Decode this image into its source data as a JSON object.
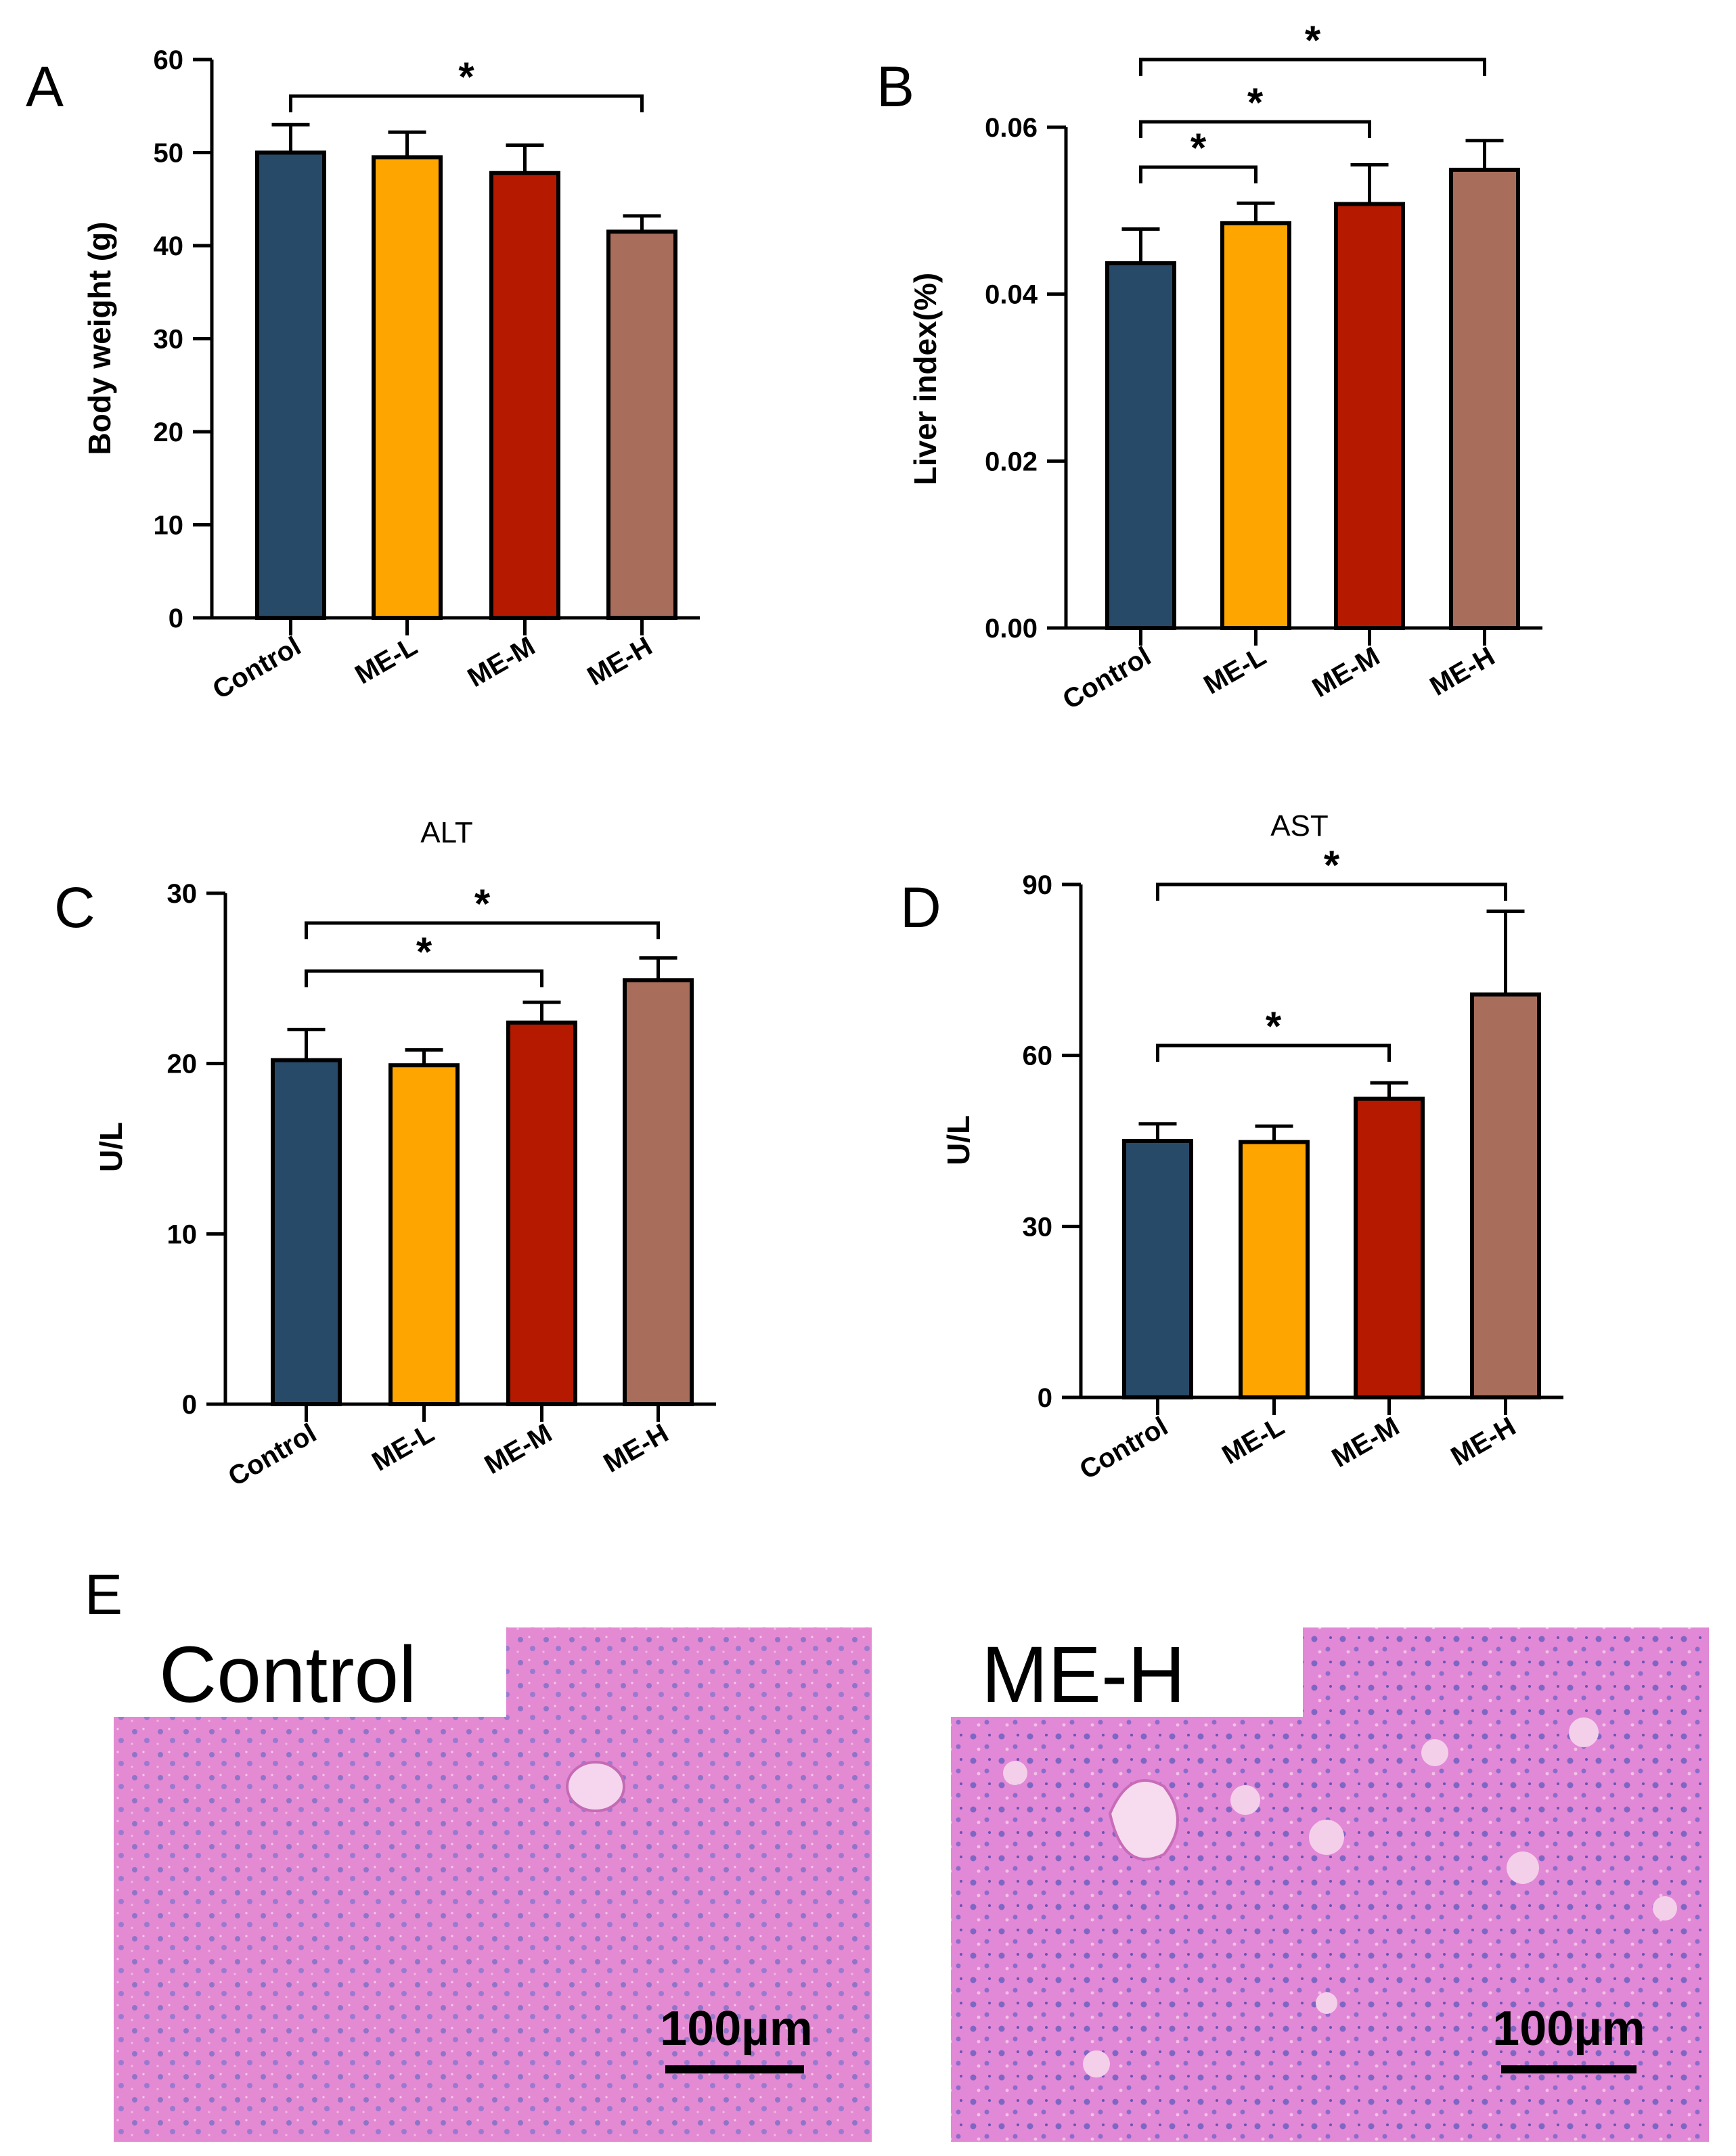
{
  "chart_data": [
    {
      "panel": "A",
      "type": "bar",
      "title": "",
      "categories": [
        "Control",
        "ME-L",
        "ME-M",
        "ME-H"
      ],
      "values": [
        50,
        49.5,
        47.8,
        41.5
      ],
      "errors": [
        3,
        2.7,
        3,
        1.7
      ],
      "ylabel": "Body weight (g)",
      "ylim": [
        0,
        60
      ],
      "ticks": [
        0,
        10,
        20,
        30,
        40,
        50,
        60
      ],
      "tick_labels": [
        "0",
        "10",
        "20",
        "30",
        "40",
        "50",
        "60"
      ],
      "significance": [
        {
          "from": 0,
          "to": 3,
          "label": "*"
        }
      ]
    },
    {
      "panel": "B",
      "type": "bar",
      "title": "",
      "categories": [
        "Control",
        "ME-L",
        "ME-M",
        "ME-H"
      ],
      "values": [
        0.0437,
        0.0485,
        0.0508,
        0.0549
      ],
      "errors": [
        0.0041,
        0.0024,
        0.0047,
        0.0035
      ],
      "ylabel": "Liver index(%)",
      "ylim": [
        0,
        0.06
      ],
      "ticks": [
        0,
        0.02,
        0.04,
        0.06
      ],
      "tick_labels": [
        "0.00",
        "0.02",
        "0.04",
        "0.06"
      ],
      "significance": [
        {
          "from": 0,
          "to": 1,
          "label": "*"
        },
        {
          "from": 0,
          "to": 2,
          "label": "*"
        },
        {
          "from": 0,
          "to": 3,
          "label": "*"
        }
      ]
    },
    {
      "panel": "C",
      "type": "bar",
      "title": "ALT",
      "categories": [
        "Control",
        "ME-L",
        "ME-M",
        "ME-H"
      ],
      "values": [
        20.2,
        19.9,
        22.4,
        24.9
      ],
      "errors": [
        1.8,
        0.9,
        1.2,
        1.3
      ],
      "ylabel": "U/L",
      "ylim": [
        0,
        30
      ],
      "ticks": [
        0,
        10,
        20,
        30
      ],
      "tick_labels": [
        "0",
        "10",
        "20",
        "30"
      ],
      "significance": [
        {
          "from": 0,
          "to": 2,
          "label": "*"
        },
        {
          "from": 0,
          "to": 3,
          "label": "*"
        }
      ]
    },
    {
      "panel": "D",
      "type": "bar",
      "title": "AST",
      "categories": [
        "Control",
        "ME-L",
        "ME-M",
        "ME-H"
      ],
      "values": [
        45,
        44.8,
        52.4,
        70.7
      ],
      "errors": [
        3,
        2.8,
        2.8,
        14.6
      ],
      "ylabel": "U/L",
      "ylim": [
        0,
        90
      ],
      "ticks": [
        0,
        30,
        60,
        90
      ],
      "tick_labels": [
        "0",
        "30",
        "60",
        "90"
      ],
      "significance": [
        {
          "from": 0,
          "to": 2,
          "label": "*"
        },
        {
          "from": 0,
          "to": 3,
          "label": "*"
        }
      ]
    }
  ],
  "colors": {
    "bars": [
      "#274a68",
      "#ffa500",
      "#b51a00",
      "#a86d5b"
    ],
    "axis": "#000000",
    "tissue": "#e48ad2"
  },
  "panel_e": {
    "letter": "E",
    "images": [
      {
        "label": "Control",
        "scale_bar": "100µm"
      },
      {
        "label": "ME-H",
        "scale_bar": "100µm"
      }
    ]
  }
}
